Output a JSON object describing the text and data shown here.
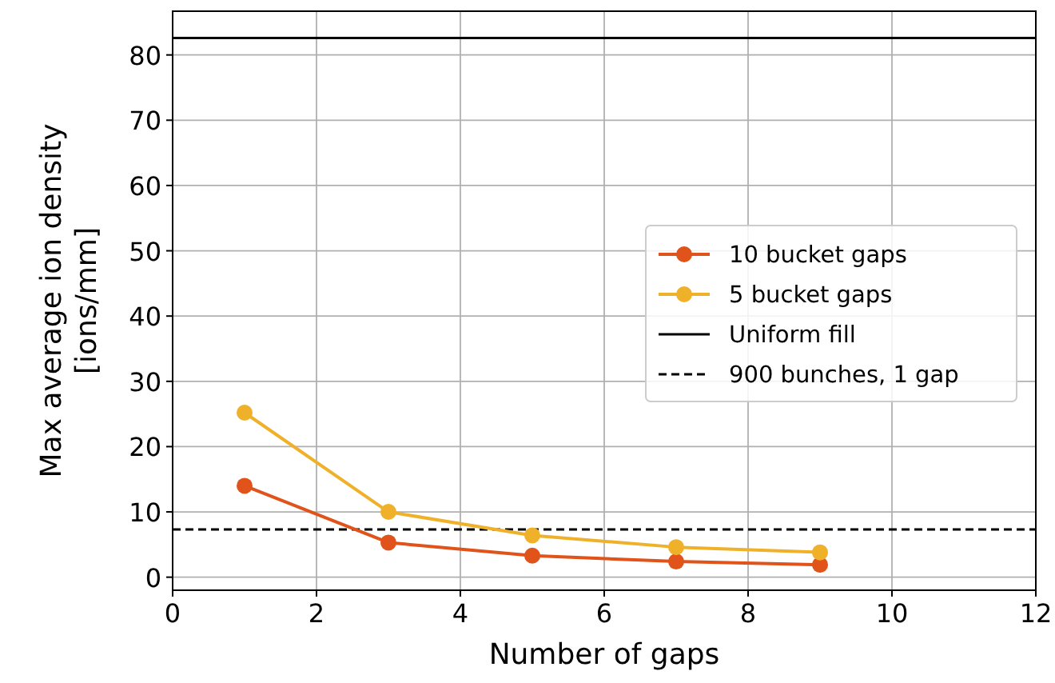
{
  "chart_data": {
    "type": "line",
    "xlabel": "Number of gaps",
    "ylabel": "Max average ion density [ions/mm]",
    "x": [
      1,
      3,
      5,
      7,
      9
    ],
    "series": [
      {
        "name": "10 bucket gaps",
        "color": "#e0531b",
        "values": [
          14.0,
          5.3,
          3.3,
          2.4,
          1.9
        ]
      },
      {
        "name": "5 bucket gaps",
        "color": "#f0b12a",
        "values": [
          25.2,
          10.0,
          6.4,
          4.6,
          3.8
        ]
      }
    ],
    "ref_lines": [
      {
        "axis": "y",
        "value": 82.6,
        "label": "Uniform fill",
        "color": "#000000",
        "line_style": "solid"
      },
      {
        "axis": "y",
        "value": 7.3,
        "label": "900 bunches, 1 gap",
        "color": "#000000",
        "line_style": "dashed"
      }
    ],
    "xlim": [
      0,
      12
    ],
    "xticks": [
      0,
      2,
      4,
      6,
      8,
      10,
      12
    ],
    "ylim": [
      -2,
      86.7
    ],
    "yticks": [
      0,
      10,
      20,
      30,
      40,
      50,
      60,
      70,
      80
    ],
    "grid": true,
    "legend": "right",
    "marker": "circle",
    "line_style": "solid"
  }
}
